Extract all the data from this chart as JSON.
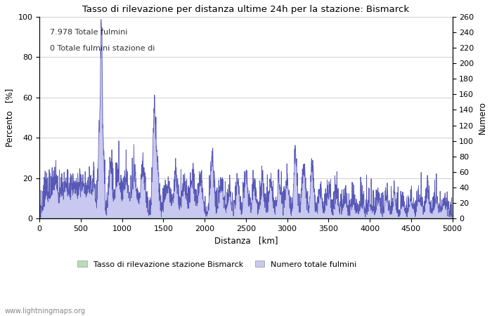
{
  "title": "Tasso di rilevazione per distanza ultime 24h per la stazione: Bismarck",
  "xlabel": "Distanza   [km]",
  "ylabel_left": "Percento   [%]",
  "ylabel_right": "Numero",
  "annotation_line1": "7.978 Totale fulmini",
  "annotation_line2": "0 Totale fulmini stazione di",
  "watermark": "www.lightningmaps.org",
  "legend_label1": "Tasso di rilevazione stazione Bismarck",
  "legend_label2": "Numero totale fulmini",
  "xlim": [
    0,
    5000
  ],
  "ylim_left": [
    0,
    100
  ],
  "ylim_right": [
    0,
    260
  ],
  "fill_color_blue": "#c8c8f0",
  "fill_color_green": "#b8ddb8",
  "line_color_blue": "#5858b8",
  "line_color_green": "#50a050",
  "background_color": "#ffffff",
  "grid_color": "#c8c8c8",
  "x_ticks": [
    0,
    500,
    1000,
    1500,
    2000,
    2500,
    3000,
    3500,
    4000,
    4500,
    5000
  ],
  "y_ticks_left": [
    0,
    20,
    40,
    60,
    80,
    100
  ],
  "y_ticks_right": [
    0,
    20,
    40,
    60,
    80,
    100,
    120,
    140,
    160,
    180,
    200,
    220,
    240,
    260
  ]
}
